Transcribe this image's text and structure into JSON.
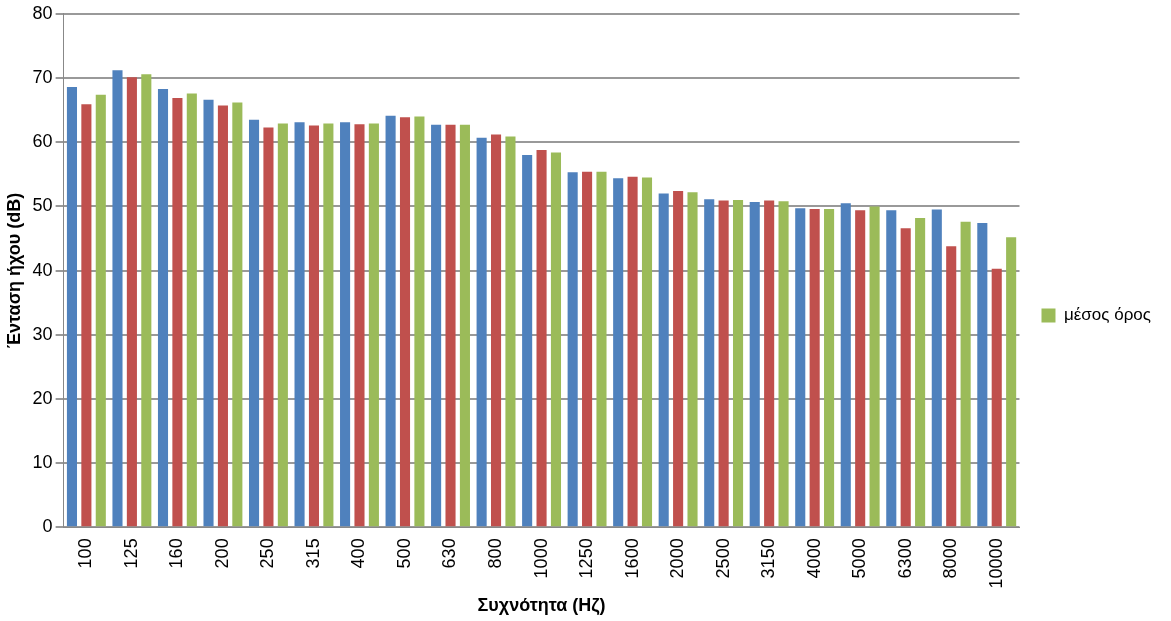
{
  "chart_data": {
    "type": "bar",
    "xlabel": "Συχνότητα (Ηζ)",
    "ylabel": "Ένταση ήχου (dB)",
    "categories": [
      "100",
      "125",
      "160",
      "200",
      "250",
      "315",
      "400",
      "500",
      "630",
      "800",
      "1000",
      "1250",
      "1600",
      "2000",
      "2500",
      "3150",
      "4000",
      "5000",
      "6300",
      "8000",
      "10000"
    ],
    "series": [
      {
        "color": "#4f81bd",
        "values": [
          68.6,
          71.2,
          68.3,
          66.6,
          63.5,
          63.1,
          63.1,
          64.1,
          62.7,
          60.7,
          58.0,
          55.3,
          54.4,
          52.0,
          51.1,
          50.7,
          49.7,
          50.5,
          49.4,
          49.5,
          47.4
        ]
      },
      {
        "color": "#c0504d",
        "values": [
          65.9,
          70.1,
          66.9,
          65.7,
          62.3,
          62.6,
          62.8,
          63.9,
          62.7,
          61.2,
          58.8,
          55.4,
          54.6,
          52.4,
          50.9,
          50.9,
          49.6,
          49.4,
          46.6,
          43.8,
          40.3
        ]
      },
      {
        "name": "μέσος όρος",
        "color": "#9bbb59",
        "values": [
          67.4,
          70.6,
          67.6,
          66.2,
          62.9,
          62.9,
          62.9,
          64.0,
          62.7,
          60.9,
          58.4,
          55.4,
          54.5,
          52.2,
          51.0,
          50.8,
          49.6,
          50.0,
          48.2,
          47.6,
          45.2
        ]
      }
    ],
    "ylim": [
      0,
      80
    ],
    "yticks": [
      0,
      10,
      20,
      30,
      40,
      50,
      60,
      70,
      80
    ],
    "grid": "y",
    "legend": "right"
  }
}
